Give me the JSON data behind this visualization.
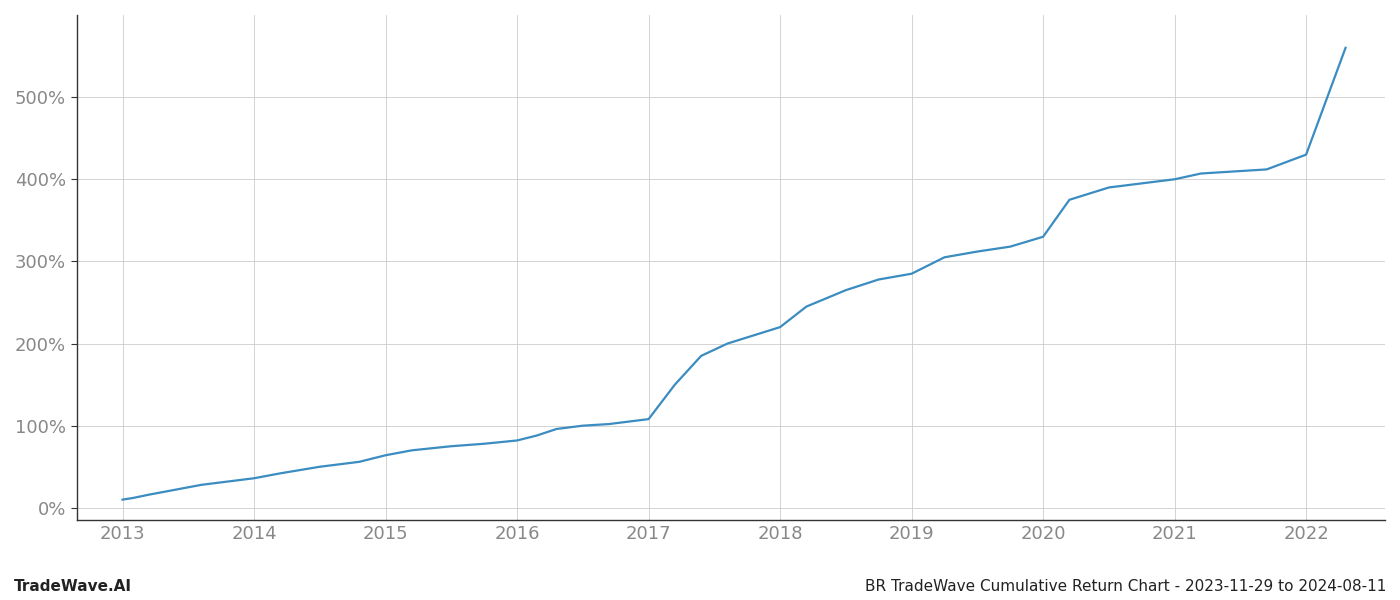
{
  "title": "BR TradeWave Cumulative Return Chart - 2023-11-29 to 2024-08-11",
  "watermark": "TradeWave.AI",
  "line_color": "#3a8cc1",
  "background_color": "#ffffff",
  "grid_color": "#cccccc",
  "x_years": [
    2013,
    2014,
    2015,
    2016,
    2017,
    2018,
    2019,
    2020,
    2021,
    2022
  ],
  "x_data": [
    2013.0,
    2013.08,
    2013.2,
    2013.4,
    2013.6,
    2013.8,
    2014.0,
    2014.2,
    2014.5,
    2014.8,
    2015.0,
    2015.2,
    2015.5,
    2015.75,
    2016.0,
    2016.15,
    2016.3,
    2016.5,
    2016.7,
    2017.0,
    2017.2,
    2017.4,
    2017.6,
    2017.8,
    2018.0,
    2018.2,
    2018.5,
    2018.75,
    2019.0,
    2019.25,
    2019.5,
    2019.75,
    2020.0,
    2020.2,
    2020.5,
    2020.75,
    2021.0,
    2021.2,
    2021.5,
    2021.7,
    2022.0,
    2022.3
  ],
  "y_data": [
    10,
    12,
    16,
    22,
    28,
    32,
    36,
    42,
    50,
    56,
    64,
    70,
    75,
    78,
    82,
    88,
    96,
    100,
    102,
    108,
    150,
    185,
    200,
    210,
    220,
    245,
    265,
    278,
    285,
    305,
    312,
    318,
    330,
    375,
    390,
    395,
    400,
    407,
    410,
    412,
    430,
    560
  ],
  "ylim": [
    -15,
    600
  ],
  "yticks": [
    0,
    100,
    200,
    300,
    400,
    500
  ],
  "xlim": [
    2012.65,
    2022.6
  ],
  "title_fontsize": 11,
  "watermark_fontsize": 11,
  "tick_fontsize": 13,
  "tick_color": "#888888",
  "line_width": 1.6,
  "left_spine_color": "#333333",
  "bottom_spine_color": "#333333"
}
